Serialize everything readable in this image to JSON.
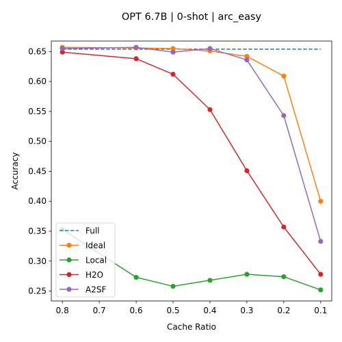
{
  "chart_data": {
    "type": "line",
    "title": "OPT 6.7B | 0-shot | arc_easy",
    "xlabel": "Cache Ratio",
    "ylabel": "Accuracy",
    "x": [
      0.8,
      0.7,
      0.6,
      0.5,
      0.4,
      0.3,
      0.2,
      0.1
    ],
    "x_tick_labels": [
      "0.8",
      "0.7",
      "0.6",
      "0.5",
      "0.4",
      "0.3",
      "0.2",
      "0.1"
    ],
    "x_reversed": true,
    "xlim": [
      0.83,
      0.07
    ],
    "ylim": [
      0.2335,
      0.6675
    ],
    "y_ticks": [
      0.25,
      0.3,
      0.35,
      0.4,
      0.45,
      0.5,
      0.55,
      0.6,
      0.65
    ],
    "y_tick_labels": [
      "0.25",
      "0.30",
      "0.35",
      "0.40",
      "0.45",
      "0.50",
      "0.55",
      "0.60",
      "0.65"
    ],
    "grid": false,
    "legend_position": "lower-left",
    "series": [
      {
        "name": "Full",
        "color": "#1f77b4",
        "style": "dashed",
        "marker": false,
        "x": [
          0.8,
          0.1
        ],
        "values": [
          0.654,
          0.654
        ]
      },
      {
        "name": "Ideal",
        "color": "#ff7f0e",
        "style": "solid",
        "marker": true,
        "x": [
          0.8,
          0.6,
          0.5,
          0.4,
          0.3,
          0.2,
          0.1
        ],
        "values": [
          0.657,
          0.656,
          0.655,
          0.651,
          0.642,
          0.609,
          0.4
        ]
      },
      {
        "name": "Local",
        "color": "#2ca02c",
        "style": "solid",
        "marker": true,
        "x": [
          0.8,
          0.6,
          0.5,
          0.4,
          0.3,
          0.2,
          0.1
        ],
        "values": [
          0.353,
          0.273,
          0.258,
          0.268,
          0.278,
          0.274,
          0.252
        ]
      },
      {
        "name": "H2O",
        "color": "#d62728",
        "style": "solid",
        "marker": true,
        "x": [
          0.8,
          0.6,
          0.5,
          0.4,
          0.3,
          0.2,
          0.1
        ],
        "values": [
          0.649,
          0.638,
          0.612,
          0.553,
          0.451,
          0.357,
          0.278
        ]
      },
      {
        "name": "A2SF",
        "color": "#9467bd",
        "style": "solid",
        "marker": true,
        "x": [
          0.8,
          0.6,
          0.5,
          0.4,
          0.3,
          0.2,
          0.1
        ],
        "values": [
          0.655,
          0.657,
          0.649,
          0.655,
          0.636,
          0.543,
          0.333
        ]
      }
    ]
  }
}
